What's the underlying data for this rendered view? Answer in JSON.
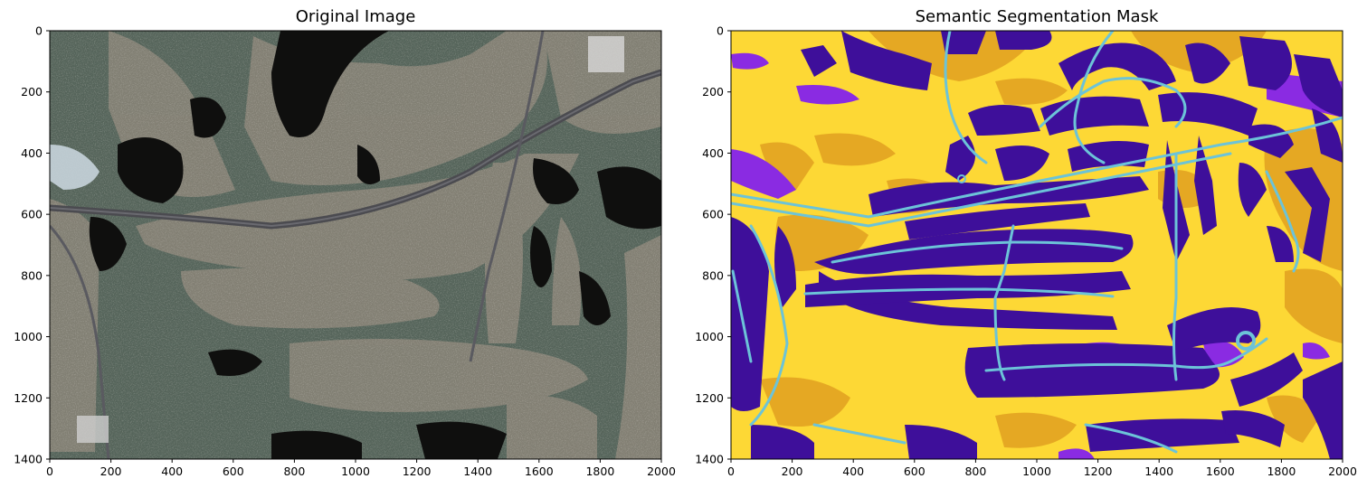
{
  "figure": {
    "panels": [
      {
        "title": "Original Image",
        "x_ticks": [
          "0",
          "200",
          "400",
          "600",
          "800",
          "1000",
          "1200",
          "1400",
          "1600",
          "1800",
          "2000"
        ],
        "y_ticks": [
          "0",
          "200",
          "400",
          "600",
          "800",
          "1000",
          "1200",
          "1400"
        ],
        "xlim": [
          0,
          2000
        ],
        "ylim": [
          1400,
          0
        ],
        "content": "aerial satellite photo of residential area with roads, villas, lakes and golf course"
      },
      {
        "title": "Semantic Segmentation Mask",
        "x_ticks": [
          "0",
          "200",
          "400",
          "600",
          "800",
          "1000",
          "1200",
          "1400",
          "1600",
          "1800",
          "2000"
        ],
        "y_ticks": [
          "0",
          "200",
          "400",
          "600",
          "800",
          "1000",
          "1200",
          "1400"
        ],
        "xlim": [
          0,
          2000
        ],
        "ylim": [
          1400,
          0
        ],
        "colors": {
          "background": "#fdd835",
          "vegetation": "#e5a823",
          "building": "#3e0f9a",
          "road": "#6cc3d8",
          "water": "#8a2be2"
        }
      }
    ]
  }
}
